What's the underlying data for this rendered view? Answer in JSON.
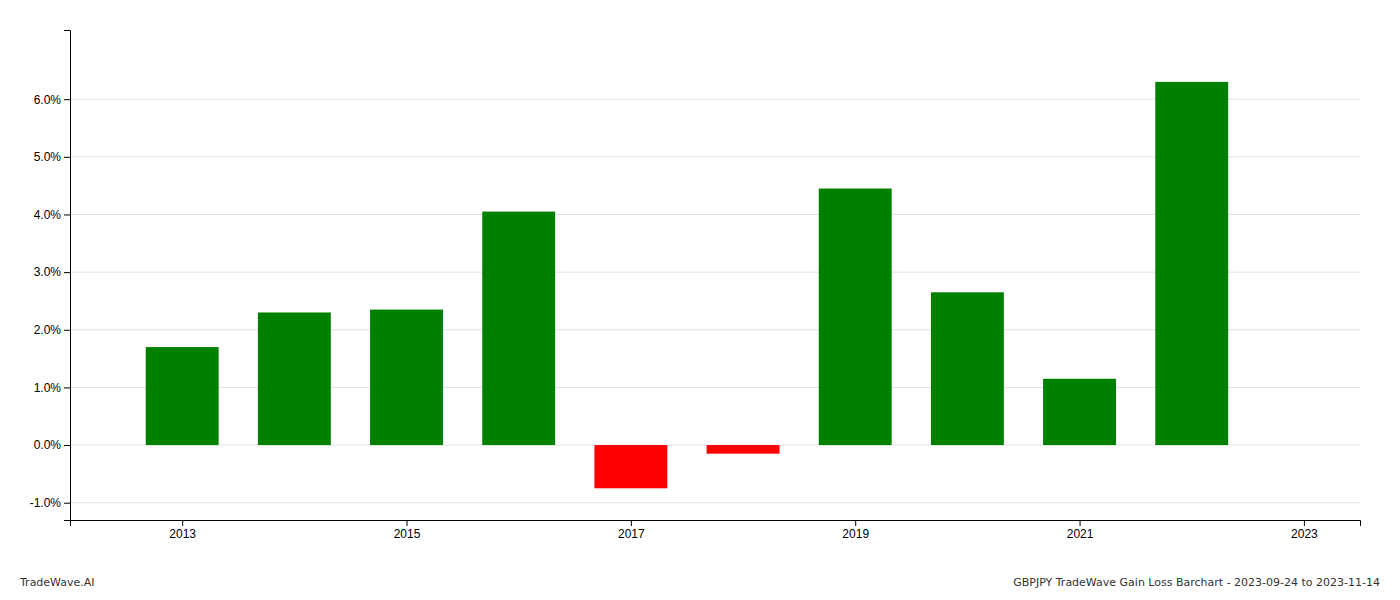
{
  "chart_data": {
    "type": "bar",
    "x": [
      2013,
      2014,
      2015,
      2016,
      2017,
      2018,
      2019,
      2020,
      2021,
      2022
    ],
    "values": [
      0.017,
      0.023,
      0.0235,
      0.0405,
      -0.0075,
      -0.0015,
      0.0445,
      0.0265,
      0.0115,
      0.063
    ],
    "colors": [
      "#008000",
      "#008000",
      "#008000",
      "#008000",
      "#ff0000",
      "#ff0000",
      "#008000",
      "#008000",
      "#008000",
      "#008000"
    ],
    "xlim": [
      2012.0,
      2023.5
    ],
    "xticks": [
      2013,
      2015,
      2017,
      2019,
      2021,
      2023
    ],
    "ylim": [
      -0.013,
      0.072
    ],
    "yticks": [
      {
        "value": -0.01,
        "label": "-1.0%"
      },
      {
        "value": 0.0,
        "label": "0.0%"
      },
      {
        "value": 0.01,
        "label": "1.0%"
      },
      {
        "value": 0.02,
        "label": "2.0%"
      },
      {
        "value": 0.03,
        "label": "3.0%"
      },
      {
        "value": 0.04,
        "label": "4.0%"
      },
      {
        "value": 0.05,
        "label": "5.0%"
      },
      {
        "value": 0.06,
        "label": "6.0%"
      }
    ],
    "grid": true,
    "annotations": [
      "TradeWave.AI",
      "GBPJPY TradeWave Gain Loss Barchart - 2023-09-24 to 2023-11-14"
    ]
  }
}
